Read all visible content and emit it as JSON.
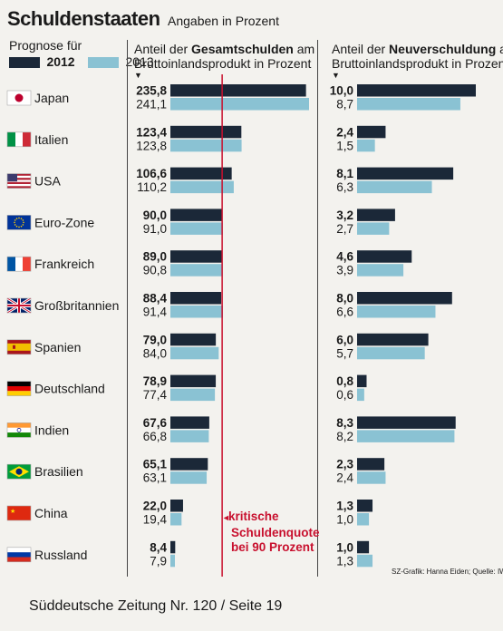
{
  "title": "Schuldenstaaten",
  "subtitle": "Angaben in Prozent",
  "legend": {
    "heading": "Prognose für",
    "label_2012": "2012",
    "label_2013": "2013"
  },
  "colors": {
    "dark": "#1b2838",
    "light": "#8ac2d3",
    "red": "#c8102e",
    "text": "#1a1a1a"
  },
  "col1_header": {
    "line1_pre": "Anteil der ",
    "line1_bold": "Gesamtschulden",
    "line1_post": " am",
    "line2": "Bruttoinlandsprodukt in Prozent"
  },
  "col2_header": {
    "line1_pre": "Anteil der ",
    "line1_bold": "Neuverschuldung",
    "line1_post": " am",
    "line2": "Bruttoinlandsprodukt in Prozent"
  },
  "annotation": {
    "line1": "kritische",
    "line2": "Schuldenquote",
    "line3": "bei 90 Prozent"
  },
  "source": "SZ-Grafik: Hanna Eiden; Quelle: IWF",
  "footer": "Süddeutsche Zeitung Nr. 120 / Seite 19",
  "chart_data": {
    "type": "bar",
    "title": "Schuldenstaaten",
    "subtitle": "Angaben in Prozent",
    "categories": [
      "Japan",
      "Italien",
      "USA",
      "Euro-Zone",
      "Frankreich",
      "Großbritannien",
      "Spanien",
      "Deutschland",
      "Indien",
      "Brasilien",
      "China",
      "Russland"
    ],
    "flags": [
      "japan",
      "italy",
      "usa",
      "eurozone",
      "france",
      "uk",
      "spain",
      "germany",
      "india",
      "brazil",
      "china",
      "russia"
    ],
    "gesamtschulden": {
      "header": "Anteil der Gesamtschulden am Bruttoinlandsprodukt in Prozent",
      "reference_line": 90,
      "series": [
        {
          "name": "2012",
          "values": [
            235.8,
            123.4,
            106.6,
            90.0,
            89.0,
            88.4,
            79.0,
            78.9,
            67.6,
            65.1,
            22.0,
            8.4
          ],
          "labels": [
            "235,8",
            "123,4",
            "106,6",
            "90,0",
            "89,0",
            "88,4",
            "79,0",
            "78,9",
            "67,6",
            "65,1",
            "22,0",
            "8,4"
          ]
        },
        {
          "name": "2013",
          "values": [
            241.1,
            123.8,
            110.2,
            91.0,
            90.8,
            91.4,
            84.0,
            77.4,
            66.8,
            63.1,
            19.4,
            7.9
          ],
          "labels": [
            "241,1",
            "123,8",
            "110,2",
            "91,0",
            "90,8",
            "91,4",
            "84,0",
            "77,4",
            "66,8",
            "63,1",
            "19,4",
            "7,9"
          ]
        }
      ]
    },
    "neuverschuldung": {
      "header": "Anteil der Neuverschuldung am Bruttoinlandsprodukt in Prozent",
      "series": [
        {
          "name": "2012",
          "values": [
            10.0,
            2.4,
            8.1,
            3.2,
            4.6,
            8.0,
            6.0,
            0.8,
            8.3,
            2.3,
            1.3,
            1.0
          ],
          "labels": [
            "10,0",
            "2,4",
            "8,1",
            "3,2",
            "4,6",
            "8,0",
            "6,0",
            "0,8",
            "8,3",
            "2,3",
            "1,3",
            "1,0"
          ]
        },
        {
          "name": "2013",
          "values": [
            8.7,
            1.5,
            6.3,
            2.7,
            3.9,
            6.6,
            5.7,
            0.6,
            8.2,
            2.4,
            1.0,
            1.3
          ],
          "labels": [
            "8,7",
            "1,5",
            "6,3",
            "2,7",
            "3,9",
            "6,6",
            "5,7",
            "0,6",
            "8,2",
            "2,4",
            "1,0",
            "1,3"
          ]
        }
      ]
    }
  }
}
